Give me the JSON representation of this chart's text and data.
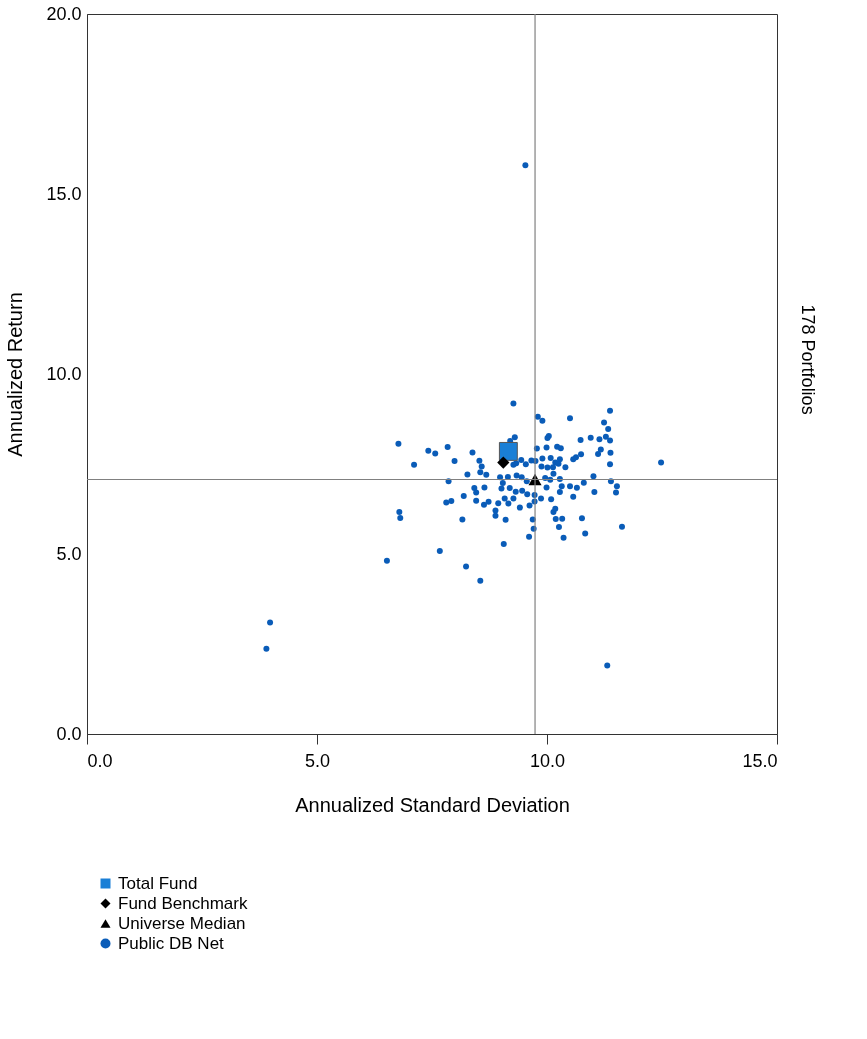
{
  "chart_data": {
    "type": "scatter",
    "xlabel": "Annualized Standard Deviation",
    "ylabel": "Annualized Return",
    "annotations": [
      "178 Portfolios"
    ],
    "xlim": [
      0,
      15
    ],
    "ylim": [
      0,
      20
    ],
    "xticks": [
      {
        "value": 0,
        "label": "0.0"
      },
      {
        "value": 5,
        "label": "5.0"
      },
      {
        "value": 10,
        "label": "10.0"
      },
      {
        "value": 15,
        "label": "15.0"
      }
    ],
    "yticks": [
      {
        "value": 0,
        "label": "0.0"
      },
      {
        "value": 5,
        "label": "5.0"
      },
      {
        "value": 10,
        "label": "10.0"
      },
      {
        "value": 15,
        "label": "15.0"
      },
      {
        "value": 20,
        "label": "20.0"
      }
    ],
    "grid": false,
    "legend": "bottom",
    "ref_lines": [
      {
        "axis": "x",
        "value": 9.74,
        "color": "#808080"
      },
      {
        "axis": "y",
        "value": 7.07,
        "color": "#808080"
      }
    ],
    "series": [
      {
        "name": "Total Fund",
        "color": "#1a7fd6",
        "marker": "square",
        "x": [
          9.16
        ],
        "values": [
          7.85
        ]
      },
      {
        "name": "Fund Benchmark",
        "color": "#000000",
        "marker": "diamond",
        "x": [
          9.05
        ],
        "values": [
          7.54
        ]
      },
      {
        "name": "Universe Median",
        "color": "#000000",
        "marker": "triangle",
        "x": [
          9.74
        ],
        "values": [
          7.07
        ]
      },
      {
        "name": "Public DB Net",
        "color": "#0a5cb8",
        "marker": "circle",
        "x": [
          9.27,
          9.8,
          9.9,
          10.5,
          11.37,
          11.24,
          11.33,
          6.77,
          7.42,
          7.57,
          7.84,
          8.38,
          9.3,
          9.2,
          10.04,
          10.01,
          10.73,
          10.95,
          11.14,
          11.28,
          11.37,
          9.78,
          9.99,
          10.22,
          10.3,
          11.17,
          11.11,
          11.38,
          10.74,
          10.57,
          10.63,
          12.48,
          7.11,
          7.99,
          8.53,
          8.58,
          9.27,
          9.33,
          9.44,
          9.54,
          9.66,
          9.75,
          9.9,
          10.08,
          10.18,
          10.28,
          10.25,
          10.4,
          11.37,
          9.88,
          10.01,
          10.13,
          8.27,
          8.55,
          8.68,
          7.86,
          8.98,
          9.15,
          9.04,
          9.34,
          9.45,
          9.56,
          9.96,
          10.07,
          10.14,
          10.28,
          11.01,
          10.8,
          11.39,
          8.42,
          8.64,
          8.46,
          8.19,
          9.01,
          9.19,
          9.32,
          9.46,
          9.57,
          9.73,
          9.99,
          10.32,
          10.5,
          10.65,
          10.28,
          10.57,
          11.03,
          11.52,
          11.5,
          7.81,
          7.92,
          8.46,
          8.63,
          8.73,
          8.94,
          9.08,
          9.16,
          9.27,
          9.41,
          9.62,
          9.73,
          9.87,
          10.09,
          6.79,
          6.81,
          8.88,
          8.88,
          8.16,
          9.1,
          9.69,
          10.14,
          10.18,
          10.19,
          10.33,
          10.76,
          11.63,
          9.71,
          10.26,
          10.83,
          9.61,
          10.36,
          9.06,
          7.67,
          6.52,
          8.24,
          8.55,
          9.53,
          3.98,
          3.9,
          11.31
        ],
        "values": [
          9.18,
          8.81,
          8.7,
          8.77,
          8.98,
          8.65,
          8.47,
          8.06,
          7.87,
          7.79,
          7.97,
          7.82,
          8.24,
          8.14,
          8.28,
          8.22,
          8.17,
          8.23,
          8.19,
          8.26,
          8.15,
          7.93,
          7.96,
          7.98,
          7.94,
          7.9,
          7.78,
          7.81,
          7.77,
          7.63,
          7.69,
          7.54,
          7.48,
          7.58,
          7.59,
          7.43,
          7.48,
          7.52,
          7.61,
          7.49,
          7.6,
          7.58,
          7.65,
          7.67,
          7.54,
          7.63,
          7.51,
          7.41,
          7.49,
          7.43,
          7.4,
          7.41,
          7.21,
          7.27,
          7.2,
          7.02,
          7.13,
          7.14,
          6.97,
          7.18,
          7.13,
          7.02,
          7.11,
          7.06,
          7.23,
          7.08,
          7.16,
          6.98,
          7.02,
          6.83,
          6.85,
          6.71,
          6.61,
          6.82,
          6.83,
          6.73,
          6.76,
          6.66,
          6.64,
          6.85,
          6.88,
          6.88,
          6.84,
          6.72,
          6.59,
          6.72,
          6.88,
          6.71,
          6.43,
          6.47,
          6.48,
          6.37,
          6.45,
          6.41,
          6.54,
          6.4,
          6.54,
          6.29,
          6.35,
          6.46,
          6.54,
          6.52,
          6.17,
          6.0,
          6.21,
          6.06,
          5.96,
          5.95,
          5.96,
          6.17,
          6.26,
          5.97,
          5.98,
          5.99,
          5.76,
          5.7,
          5.75,
          5.57,
          5.48,
          5.45,
          5.28,
          5.08,
          4.81,
          4.65,
          4.26,
          15.8,
          3.1,
          2.37,
          1.9
        ]
      }
    ]
  }
}
